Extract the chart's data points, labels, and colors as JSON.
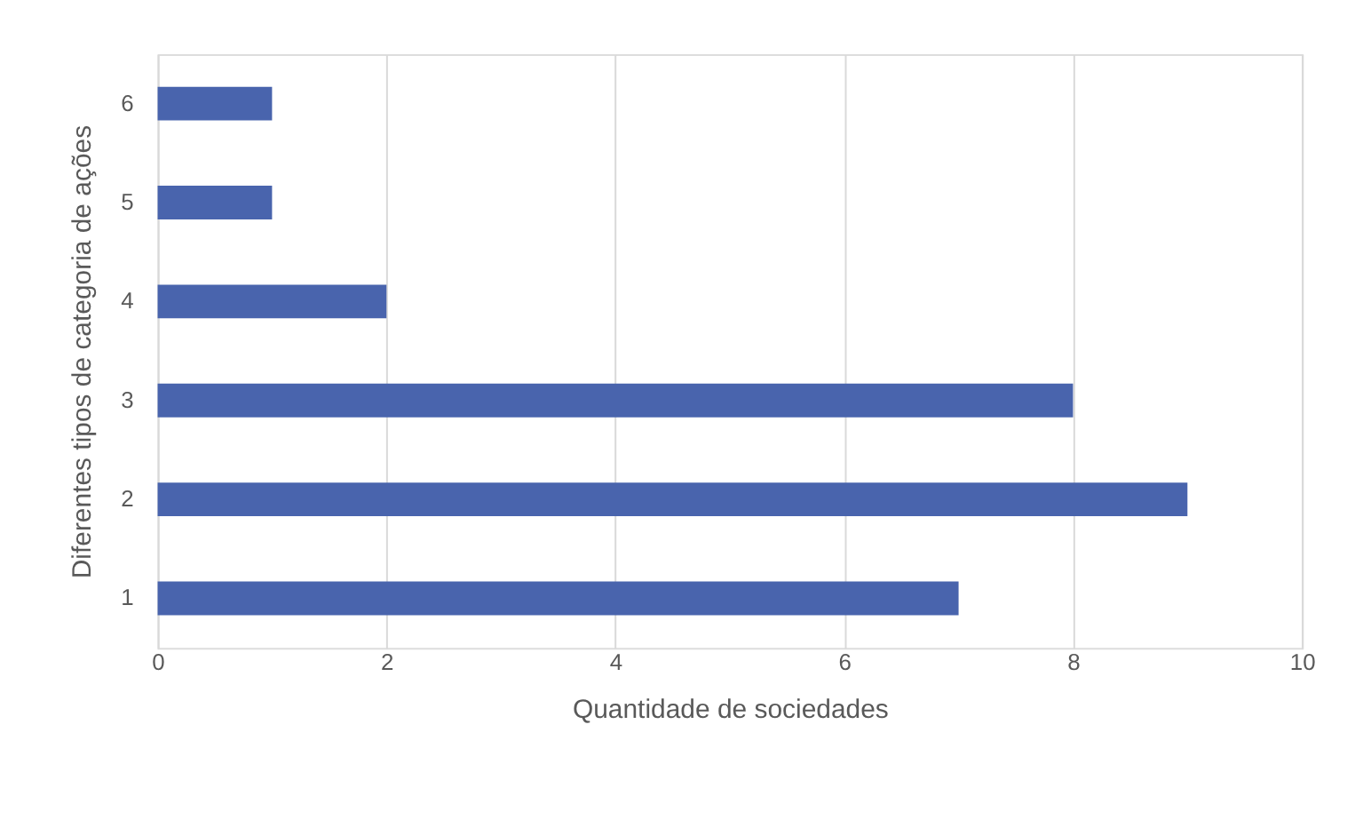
{
  "chart_data": {
    "type": "bar",
    "orientation": "horizontal",
    "categories": [
      "6",
      "5",
      "4",
      "3",
      "2",
      "1"
    ],
    "values": [
      1,
      1,
      2,
      8,
      9,
      7
    ],
    "color": "#4964ad",
    "xlim": [
      0,
      10
    ],
    "xticks": [
      0,
      2,
      4,
      6,
      8,
      10
    ],
    "xlabel": "Quantidade de sociedades",
    "ylabel": "Diferentes tipos de categoria de ações",
    "grid": "x"
  }
}
